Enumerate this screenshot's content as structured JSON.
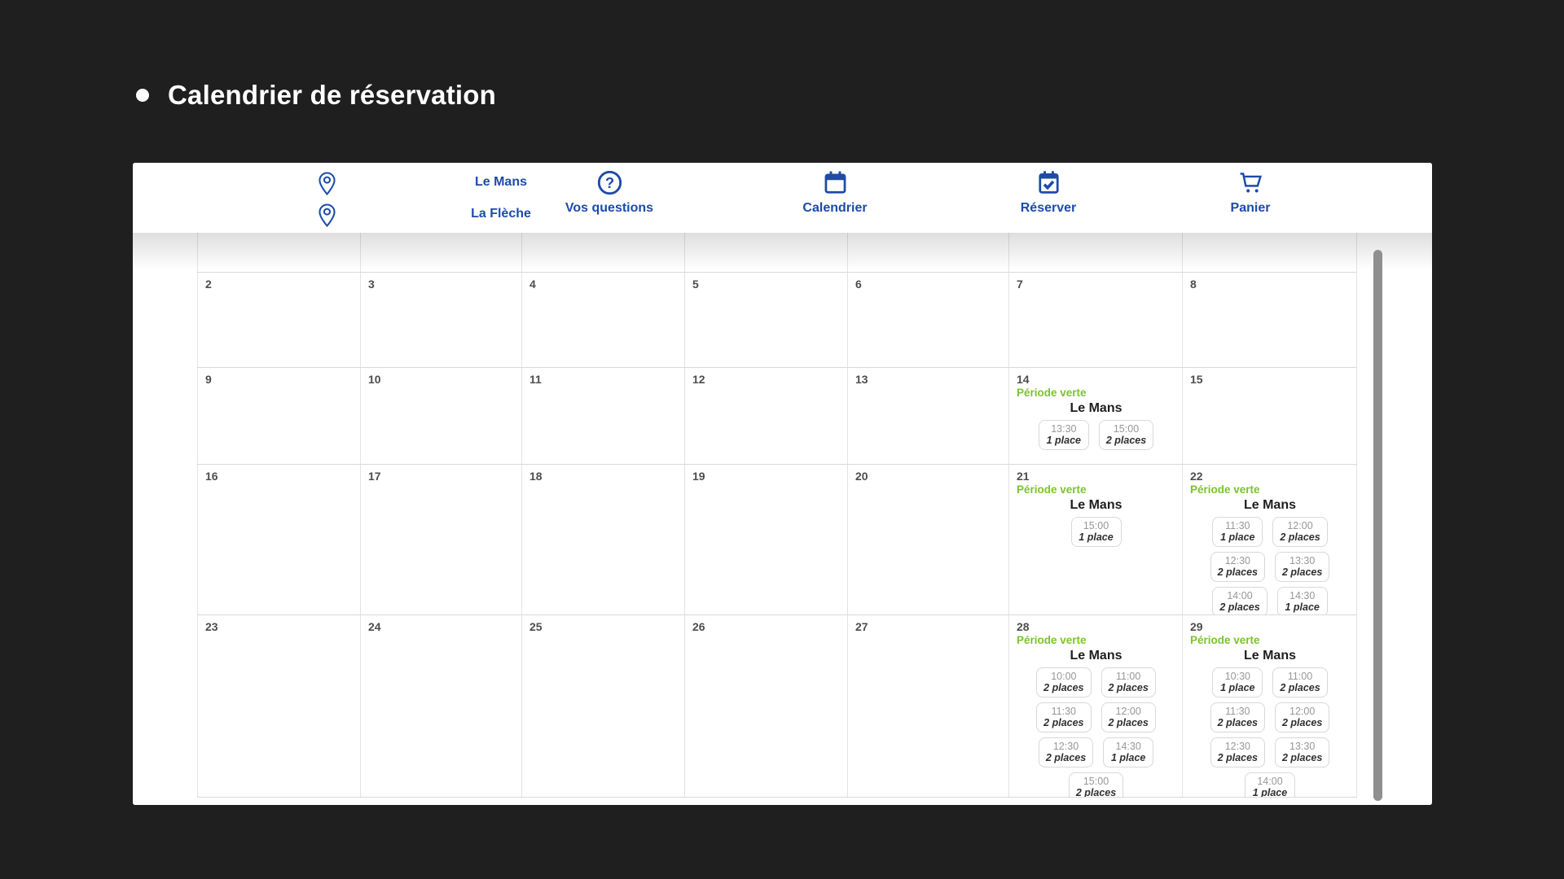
{
  "page": {
    "title": "Calendrier de réservation"
  },
  "colors": {
    "background": "#1f1f1f",
    "accent_blue": "#1d4ba8",
    "period_green": "#7bc42b",
    "scrollbar_grey": "#8f8f8f"
  },
  "nav": {
    "locations": [
      {
        "label": "Le Mans",
        "icon": "location-pin-icon"
      },
      {
        "label": "La Flèche",
        "icon": "location-pin-icon"
      }
    ],
    "items": [
      {
        "label": "Vos questions",
        "icon": "question-circle-icon"
      },
      {
        "label": "Calendrier",
        "icon": "calendar-icon"
      },
      {
        "label": "Réserver",
        "icon": "calendar-check-icon"
      },
      {
        "label": "Panier",
        "icon": "shopping-cart-icon"
      }
    ]
  },
  "calendar": {
    "weeks": [
      {
        "days": [
          {
            "date": "2"
          },
          {
            "date": "3"
          },
          {
            "date": "4"
          },
          {
            "date": "5"
          },
          {
            "date": "6"
          },
          {
            "date": "7"
          },
          {
            "date": "8"
          }
        ]
      },
      {
        "days": [
          {
            "date": "9"
          },
          {
            "date": "10"
          },
          {
            "date": "11"
          },
          {
            "date": "12"
          },
          {
            "date": "13"
          },
          {
            "date": "14",
            "period": "Période verte",
            "venue": "Le Mans",
            "slots": [
              {
                "time": "13:30",
                "places": "1 place"
              },
              {
                "time": "15:00",
                "places": "2 places"
              }
            ]
          },
          {
            "date": "15"
          }
        ]
      },
      {
        "days": [
          {
            "date": "16"
          },
          {
            "date": "17"
          },
          {
            "date": "18"
          },
          {
            "date": "19"
          },
          {
            "date": "20"
          },
          {
            "date": "21",
            "period": "Période verte",
            "venue": "Le Mans",
            "slots": [
              {
                "time": "15:00",
                "places": "1 place"
              }
            ]
          },
          {
            "date": "22",
            "period": "Période verte",
            "venue": "Le Mans",
            "slots": [
              {
                "time": "11:30",
                "places": "1 place"
              },
              {
                "time": "12:00",
                "places": "2 places"
              },
              {
                "time": "12:30",
                "places": "2 places"
              },
              {
                "time": "13:30",
                "places": "2 places"
              },
              {
                "time": "14:00",
                "places": "2 places"
              },
              {
                "time": "14:30",
                "places": "1 place"
              }
            ]
          }
        ]
      },
      {
        "days": [
          {
            "date": "23"
          },
          {
            "date": "24"
          },
          {
            "date": "25"
          },
          {
            "date": "26"
          },
          {
            "date": "27"
          },
          {
            "date": "28",
            "period": "Période verte",
            "venue": "Le Mans",
            "slots": [
              {
                "time": "10:00",
                "places": "2 places"
              },
              {
                "time": "11:00",
                "places": "2 places"
              },
              {
                "time": "11:30",
                "places": "2 places"
              },
              {
                "time": "12:00",
                "places": "2 places"
              },
              {
                "time": "12:30",
                "places": "2 places"
              },
              {
                "time": "14:30",
                "places": "1 place"
              },
              {
                "time": "15:00",
                "places": "2 places"
              }
            ]
          },
          {
            "date": "29",
            "period": "Période verte",
            "venue": "Le Mans",
            "slots": [
              {
                "time": "10:30",
                "places": "1 place"
              },
              {
                "time": "11:00",
                "places": "2 places"
              },
              {
                "time": "11:30",
                "places": "2 places"
              },
              {
                "time": "12:00",
                "places": "2 places"
              },
              {
                "time": "12:30",
                "places": "2 places"
              },
              {
                "time": "13:30",
                "places": "2 places"
              },
              {
                "time": "14:00",
                "places": "1 place"
              }
            ]
          }
        ]
      }
    ]
  }
}
